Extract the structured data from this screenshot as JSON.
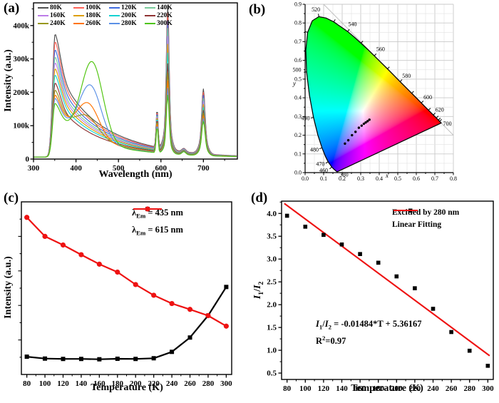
{
  "chart_data": [
    {
      "id": "a",
      "type": "line",
      "tag": "(a)",
      "xlabel": "Wavelength (nm)",
      "ylabel": "Intensity (a.u.)",
      "xlim": [
        300,
        780
      ],
      "ylim": [
        0,
        468000
      ],
      "xticks": [
        300,
        400,
        500,
        600,
        700
      ],
      "yticks": [
        {
          "v": 0,
          "label": "0"
        },
        {
          "v": 100000,
          "label": "100k"
        },
        {
          "v": 200000,
          "label": "200k"
        },
        {
          "v": 300000,
          "label": "300k"
        },
        {
          "v": 400000,
          "label": "400k"
        }
      ],
      "series": [
        {
          "name": "80K",
          "color": "#4f4f4f",
          "peak350": 370000,
          "broad435": 0,
          "broad_center": 437,
          "peak590": 150000,
          "peak615": 460000,
          "peak653": 32000,
          "peak700": 210000
        },
        {
          "name": "100K",
          "color": "#ff6257",
          "peak350": 347000,
          "broad435": 0,
          "broad_center": 437,
          "peak590": 146000,
          "peak615": 438000,
          "peak653": 31000,
          "peak700": 200000
        },
        {
          "name": "120K",
          "color": "#3f6be0",
          "peak350": 323000,
          "broad435": 0,
          "broad_center": 437,
          "peak590": 142000,
          "peak615": 415000,
          "peak653": 30000,
          "peak700": 191000
        },
        {
          "name": "140K",
          "color": "#79cc9b",
          "peak350": 301000,
          "broad435": 0,
          "broad_center": 437,
          "peak590": 138000,
          "peak615": 392000,
          "peak653": 29000,
          "peak700": 182000
        },
        {
          "name": "160K",
          "color": "#bd7ce8",
          "peak350": 284000,
          "broad435": 0,
          "broad_center": 437,
          "peak590": 134000,
          "peak615": 368000,
          "peak653": 28000,
          "peak700": 173000
        },
        {
          "name": "180K",
          "color": "#dd9f00",
          "peak350": 266000,
          "broad435": 0,
          "broad_center": 437,
          "peak590": 130000,
          "peak615": 344000,
          "peak653": 27000,
          "peak700": 164000
        },
        {
          "name": "200K",
          "color": "#15d2d2",
          "peak350": 247000,
          "broad435": 0,
          "broad_center": 437,
          "peak590": 126000,
          "peak615": 318000,
          "peak653": 26000,
          "peak700": 155000
        },
        {
          "name": "220K",
          "color": "#8f3333",
          "peak350": 223000,
          "broad435": 0,
          "broad_center": 437,
          "peak590": 121000,
          "peak615": 286000,
          "peak653": 25000,
          "peak700": 146000
        },
        {
          "name": "240K",
          "color": "#97971c",
          "peak350": 201000,
          "broad435": 130000,
          "broad_center": 427,
          "peak590": 116000,
          "peak615": 258000,
          "peak653": 24000,
          "peak700": 138000
        },
        {
          "name": "260K",
          "color": "#ff7300",
          "peak350": 186000,
          "broad435": 168000,
          "broad_center": 429,
          "peak590": 111000,
          "peak615": 234000,
          "peak653": 23500,
          "peak700": 130000
        },
        {
          "name": "280K",
          "color": "#5b90e6",
          "peak350": 176000,
          "broad435": 222000,
          "broad_center": 434,
          "peak590": 104000,
          "peak615": 212000,
          "peak653": 23000,
          "peak700": 122000
        },
        {
          "name": "300K",
          "color": "#4ec40c",
          "peak350": 161000,
          "broad435": 292000,
          "broad_center": 438,
          "peak590": 97000,
          "peak615": 192000,
          "peak653": 22000,
          "peak700": 113000
        }
      ]
    },
    {
      "id": "b",
      "type": "scatter",
      "tag": "(b)",
      "xlabel": "x",
      "ylabel": "y",
      "xlim": [
        0,
        0.8
      ],
      "ylim": [
        0,
        0.9
      ],
      "xtick_labels": [
        "0.0",
        "0.1",
        "0.2",
        "0.3",
        "0.4",
        "0.5",
        "0.6",
        "0.7",
        "0.8"
      ],
      "ytick_labels": [
        "0.0",
        "0.1",
        "0.2",
        "0.3",
        "0.4",
        "0.5",
        "0.6",
        "0.7",
        "0.8",
        "0.9"
      ],
      "wavelength_label_color": "#2222cc",
      "locus": [
        [
          380,
          0.1741,
          0.005
        ],
        [
          420,
          0.1714,
          0.0051
        ],
        [
          440,
          0.1644,
          0.0109
        ],
        [
          450,
          0.1566,
          0.0177
        ],
        [
          460,
          0.144,
          0.0297
        ],
        [
          470,
          0.1241,
          0.0578
        ],
        [
          475,
          0.1096,
          0.0868
        ],
        [
          480,
          0.0913,
          0.1327
        ],
        [
          485,
          0.0687,
          0.2007
        ],
        [
          490,
          0.0454,
          0.295
        ],
        [
          495,
          0.0235,
          0.4127
        ],
        [
          500,
          0.0082,
          0.5384
        ],
        [
          505,
          0.0039,
          0.6548
        ],
        [
          510,
          0.0139,
          0.7502
        ],
        [
          515,
          0.0389,
          0.812
        ],
        [
          520,
          0.0743,
          0.8338
        ],
        [
          525,
          0.1142,
          0.8262
        ],
        [
          530,
          0.1547,
          0.8059
        ],
        [
          535,
          0.1896,
          0.7816
        ],
        [
          540,
          0.2296,
          0.7543
        ],
        [
          545,
          0.2658,
          0.7243
        ],
        [
          550,
          0.3016,
          0.6923
        ],
        [
          555,
          0.3373,
          0.6589
        ],
        [
          560,
          0.3731,
          0.6245
        ],
        [
          565,
          0.4087,
          0.5896
        ],
        [
          570,
          0.4441,
          0.5547
        ],
        [
          575,
          0.4788,
          0.5202
        ],
        [
          580,
          0.5125,
          0.4866
        ],
        [
          585,
          0.5448,
          0.4544
        ],
        [
          590,
          0.5752,
          0.4242
        ],
        [
          595,
          0.6029,
          0.3965
        ],
        [
          600,
          0.627,
          0.3725
        ],
        [
          605,
          0.6482,
          0.3514
        ],
        [
          610,
          0.6658,
          0.334
        ],
        [
          615,
          0.6801,
          0.3197
        ],
        [
          620,
          0.6915,
          0.3083
        ],
        [
          630,
          0.7079,
          0.292
        ],
        [
          640,
          0.719,
          0.2809
        ],
        [
          650,
          0.726,
          0.274
        ],
        [
          700,
          0.7347,
          0.2653
        ]
      ],
      "tick_wavelengths": [
        460,
        470,
        480,
        490,
        500,
        510,
        520,
        530,
        540,
        550,
        560,
        570,
        580,
        590,
        600,
        610,
        620,
        630,
        640,
        650
      ],
      "wavelength_labels": [
        {
          "text": "380",
          "x": 0.21,
          "y": -0.012
        },
        {
          "text": "460",
          "x": 0.1,
          "y": 0.012
        },
        {
          "text": "470",
          "x": 0.082,
          "y": 0.045
        },
        {
          "text": "480",
          "x": 0.05,
          "y": 0.122
        },
        {
          "text": "490",
          "x": 0.002,
          "y": 0.29
        },
        {
          "text": "500",
          "x": -0.044,
          "y": 0.549
        },
        {
          "text": "520",
          "x": 0.058,
          "y": 0.872
        },
        {
          "text": "540",
          "x": 0.256,
          "y": 0.793
        },
        {
          "text": "560",
          "x": 0.407,
          "y": 0.66
        },
        {
          "text": "580",
          "x": 0.547,
          "y": 0.517
        },
        {
          "text": "600",
          "x": 0.662,
          "y": 0.402
        },
        {
          "text": "620",
          "x": 0.726,
          "y": 0.336
        },
        {
          "text": "700",
          "x": 0.768,
          "y": 0.262
        }
      ],
      "points": [
        [
          0.215,
          0.155
        ],
        [
          0.233,
          0.173
        ],
        [
          0.253,
          0.2
        ],
        [
          0.272,
          0.218
        ],
        [
          0.29,
          0.24
        ],
        [
          0.305,
          0.251
        ],
        [
          0.317,
          0.261
        ],
        [
          0.327,
          0.268
        ],
        [
          0.337,
          0.275
        ],
        [
          0.347,
          0.283
        ]
      ],
      "diagonal": [
        [
          0.1,
          0.9
        ],
        [
          0.8,
          0.2
        ]
      ],
      "point_color": "#000000"
    },
    {
      "id": "c",
      "type": "line",
      "tag": "(c)",
      "xlabel": "Temperature (K)",
      "ylabel": "Intensity (a.u.)",
      "x": [
        80,
        100,
        120,
        140,
        160,
        180,
        200,
        220,
        240,
        260,
        280,
        300
      ],
      "xlim": [
        74,
        306
      ],
      "ylim": [
        0,
        1
      ],
      "series": [
        {
          "label_lambda": "λ",
          "label_sub": "Em",
          "label_rest": " = 435 nm",
          "color": "#000000",
          "marker": "square",
          "values": [
            0.103,
            0.092,
            0.09,
            0.09,
            0.088,
            0.091,
            0.09,
            0.094,
            0.131,
            0.214,
            0.341,
            0.507
          ]
        },
        {
          "label_lambda": "λ",
          "label_sub": "Em",
          "label_rest": " = 615 nm",
          "color": "#ee1212",
          "marker": "circle",
          "values": [
            0.91,
            0.8,
            0.75,
            0.694,
            0.639,
            0.593,
            0.521,
            0.459,
            0.411,
            0.377,
            0.341,
            0.28
          ]
        }
      ]
    },
    {
      "id": "d",
      "type": "scatter",
      "tag": "(d)",
      "xlabel": "Temperature (K)",
      "ylabel_pieces": {
        "I1": "I",
        "s1": "1",
        "sep": "/",
        "I2": "I",
        "s2": "2"
      },
      "x": [
        80,
        100,
        120,
        140,
        160,
        180,
        200,
        220,
        240,
        260,
        280,
        300
      ],
      "values": [
        3.95,
        3.71,
        3.53,
        3.32,
        3.11,
        2.92,
        2.62,
        2.36,
        1.91,
        1.4,
        0.99,
        0.66
      ],
      "fit": {
        "slope": -0.01484,
        "intercept": 5.36167
      },
      "xlim": [
        74,
        306
      ],
      "ylim": [
        0.36,
        4.27
      ],
      "yticks": [
        "0.5",
        "1.0",
        "1.5",
        "2.0",
        "2.5",
        "3.0",
        "3.5",
        "4.0"
      ],
      "legend": [
        {
          "label": "Excitied by 280 nm",
          "color": "#000000",
          "marker": "square"
        },
        {
          "label": "Linear Fitting",
          "color": "#ee1212",
          "marker": "line"
        }
      ],
      "annotation": {
        "I1": "I",
        "s1": "1",
        "sep": "/",
        "I2": "I",
        "s2": "2",
        "rest": " = -0.01484*T + 5.36167",
        "r_base": "R",
        "r_sup": "2",
        "r_rest": "=0.97"
      },
      "marker_color": "#000000",
      "line_color": "#ee1212"
    }
  ]
}
